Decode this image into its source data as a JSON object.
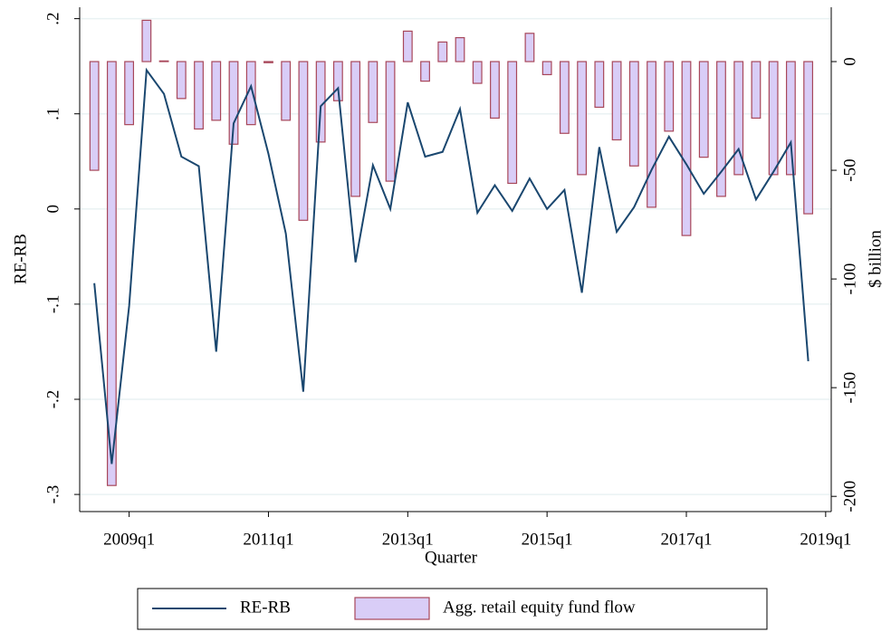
{
  "chart_data": {
    "type": "combo",
    "x_label": "Quarter",
    "y_label": "RE-RB",
    "y2_label": "$ billion",
    "x": [
      2008.5,
      2008.75,
      2009,
      2009.25,
      2009.5,
      2009.75,
      2010,
      2010.25,
      2010.5,
      2010.75,
      2011,
      2011.25,
      2011.5,
      2011.75,
      2012,
      2012.25,
      2012.5,
      2012.75,
      2013,
      2013.25,
      2013.5,
      2013.75,
      2014,
      2014.25,
      2014.5,
      2014.75,
      2015,
      2015.25,
      2015.5,
      2015.75,
      2016,
      2016.25,
      2016.5,
      2016.75,
      2017,
      2017.25,
      2017.5,
      2017.75,
      2018,
      2018.25,
      2018.5,
      2018.75
    ],
    "series": [
      {
        "name": "RE-RB",
        "type": "line",
        "color": "#1a476f",
        "values": [
          -0.078,
          -0.268,
          -0.102,
          0.146,
          0.121,
          0.055,
          0.045,
          -0.15,
          0.09,
          0.129,
          0.058,
          -0.026,
          -0.192,
          0.108,
          0.127,
          -0.056,
          0.046,
          0.0,
          0.112,
          0.055,
          0.06,
          0.105,
          -0.004,
          0.025,
          -0.002,
          0.032,
          0.0,
          0.02,
          -0.088,
          0.065,
          -0.024,
          0.002,
          0.041,
          0.076,
          0.047,
          0.016,
          0.039,
          0.063,
          0.01,
          0.039,
          0.07,
          -0.16
        ]
      },
      {
        "name": "Agg. retail equity fund flow",
        "type": "bar",
        "axis": "y2",
        "color": "#d9cdf7",
        "edgecolor": "#a8475a",
        "values": [
          -50,
          -195,
          -29,
          19,
          0.3,
          -17,
          -31,
          -27,
          -38,
          -29,
          -0.5,
          -27,
          -73,
          -37,
          -18,
          -62,
          -28,
          -55,
          14,
          -9,
          9,
          11,
          -10,
          -26,
          -56,
          13,
          -6,
          -33,
          -52,
          -21,
          -36,
          -48,
          -67,
          -32,
          -80,
          -44,
          -62,
          -52,
          -26,
          -52,
          -52,
          -70
        ]
      }
    ],
    "xlim": [
      2008.29,
      2019.08
    ],
    "xticks": [
      {
        "value": 2009,
        "label": "2009q1"
      },
      {
        "value": 2011,
        "label": "2011q1"
      },
      {
        "value": 2013,
        "label": "2013q1"
      },
      {
        "value": 2015,
        "label": "2015q1"
      },
      {
        "value": 2017,
        "label": "2017q1"
      },
      {
        "value": 2019,
        "label": "2019q1"
      }
    ],
    "ylim": [
      -0.318,
      0.212
    ],
    "yticks": [
      {
        "value": 0.2,
        "label": ".2"
      },
      {
        "value": 0.1,
        "label": ".1"
      },
      0,
      {
        "value": -0.1,
        "label": "-.1"
      },
      {
        "value": -0.2,
        "label": "-.2"
      },
      {
        "value": -0.3,
        "label": "-.3"
      }
    ],
    "y2lim": [
      -207,
      25
    ],
    "y2ticks": [
      0,
      -50,
      -100,
      -150,
      -200
    ],
    "grid": true,
    "legend": "bottom"
  }
}
